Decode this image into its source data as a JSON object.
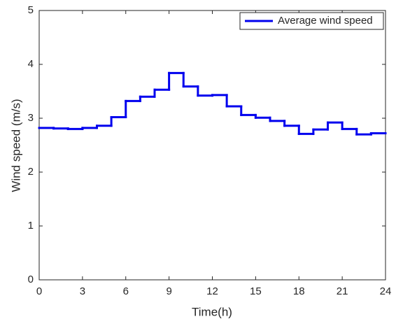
{
  "chart_data": {
    "type": "stairs",
    "xlabel": "Time(h)",
    "ylabel": "Wind speed (m/s)",
    "x": [
      0,
      1,
      2,
      3,
      4,
      5,
      6,
      7,
      8,
      9,
      10,
      11,
      12,
      13,
      14,
      15,
      16,
      17,
      18,
      19,
      20,
      21,
      22,
      23
    ],
    "series": [
      {
        "name": "Average wind speed",
        "color": "#0000ee",
        "values": [
          2.82,
          2.81,
          2.8,
          2.82,
          2.86,
          3.02,
          3.32,
          3.4,
          3.53,
          3.84,
          3.59,
          3.42,
          3.43,
          3.22,
          3.06,
          3.01,
          2.95,
          2.86,
          2.71,
          2.79,
          2.92,
          2.8,
          2.7,
          2.72
        ]
      }
    ],
    "xlim": [
      0,
      24
    ],
    "xticks": [
      0,
      3,
      6,
      9,
      12,
      15,
      18,
      21,
      24
    ],
    "ylim": [
      0,
      5
    ],
    "yticks": [
      0,
      1,
      2,
      3,
      4,
      5
    ],
    "grid": false,
    "legend": "northeast"
  }
}
